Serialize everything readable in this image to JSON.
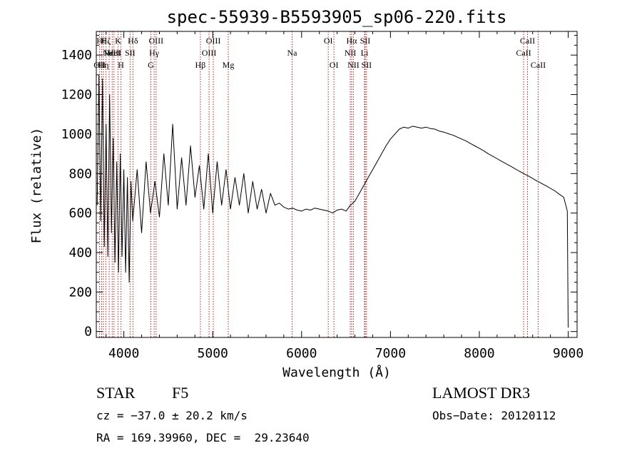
{
  "chart_data": {
    "type": "line",
    "title": "spec-55939-B5593905_sp06-220.fits",
    "xlabel": "Wavelength (Å)",
    "ylabel": "Flux (relative)",
    "xlim": [
      3690,
      9100
    ],
    "ylim": [
      -30,
      1520
    ],
    "xticks": [
      4000,
      5000,
      6000,
      7000,
      8000,
      9000
    ],
    "yticks": [
      0,
      200,
      400,
      600,
      800,
      1000,
      1200,
      1400
    ],
    "series": [
      {
        "name": "flux",
        "x": [
          3700,
          3720,
          3740,
          3760,
          3780,
          3800,
          3820,
          3840,
          3860,
          3880,
          3900,
          3920,
          3940,
          3960,
          3980,
          4000,
          4020,
          4040,
          4060,
          4080,
          4100,
          4150,
          4200,
          4250,
          4300,
          4350,
          4400,
          4450,
          4500,
          4550,
          4600,
          4650,
          4700,
          4750,
          4800,
          4850,
          4900,
          4950,
          5000,
          5050,
          5100,
          5150,
          5200,
          5250,
          5300,
          5350,
          5400,
          5450,
          5500,
          5550,
          5600,
          5650,
          5700,
          5750,
          5800,
          5850,
          5900,
          5950,
          6000,
          6050,
          6100,
          6150,
          6200,
          6250,
          6300,
          6350,
          6400,
          6450,
          6500,
          6550,
          6600,
          6650,
          6700,
          6750,
          6800,
          6850,
          6900,
          6950,
          7000,
          7050,
          7100,
          7150,
          7200,
          7250,
          7300,
          7350,
          7400,
          7450,
          7500,
          7550,
          7600,
          7650,
          7700,
          7750,
          7800,
          7850,
          7900,
          7950,
          8000,
          8050,
          8100,
          8150,
          8200,
          8250,
          8300,
          8350,
          8400,
          8450,
          8500,
          8550,
          8600,
          8650,
          8700,
          8750,
          8800,
          8850,
          8900,
          8950,
          8990,
          9000
        ],
        "values": [
          640,
          1300,
          560,
          1280,
          430,
          1050,
          380,
          1200,
          500,
          980,
          350,
          860,
          300,
          900,
          380,
          820,
          300,
          780,
          250,
          760,
          560,
          820,
          500,
          860,
          600,
          760,
          580,
          900,
          640,
          1050,
          620,
          880,
          640,
          940,
          680,
          840,
          620,
          900,
          600,
          860,
          640,
          820,
          620,
          780,
          640,
          800,
          600,
          760,
          620,
          720,
          600,
          700,
          640,
          650,
          630,
          620,
          625,
          615,
          610,
          620,
          615,
          625,
          620,
          615,
          610,
          600,
          615,
          620,
          610,
          640,
          660,
          700,
          740,
          780,
          820,
          860,
          900,
          940,
          975,
          1000,
          1025,
          1035,
          1030,
          1040,
          1035,
          1030,
          1035,
          1028,
          1025,
          1015,
          1010,
          1002,
          995,
          985,
          975,
          965,
          952,
          940,
          928,
          915,
          900,
          888,
          875,
          862,
          850,
          838,
          825,
          812,
          800,
          788,
          775,
          762,
          750,
          738,
          725,
          712,
          695,
          680,
          610,
          20
        ]
      }
    ],
    "lines": [
      {
        "x": 3727,
        "label": "OII",
        "row": 2
      },
      {
        "x": 3750,
        "label": "Hθ",
        "row": 0
      },
      {
        "x": 3770,
        "label": "Hη",
        "row": 2
      },
      {
        "x": 3798,
        "label": "Hζ",
        "row": 0
      },
      {
        "x": 3835,
        "label": "Hε",
        "row": 1
      },
      {
        "x": 3869,
        "label": "NeIII",
        "row": 1
      },
      {
        "x": 3889,
        "label": "HeI",
        "row": 1
      },
      {
        "x": 3934,
        "label": "K",
        "row": 0
      },
      {
        "x": 3968,
        "label": "H",
        "row": 2
      },
      {
        "x": 4070,
        "label": "SII",
        "row": 1
      },
      {
        "x": 4102,
        "label": "Hδ",
        "row": 0
      },
      {
        "x": 4304,
        "label": "G",
        "row": 2
      },
      {
        "x": 4341,
        "label": "Hγ",
        "row": 1
      },
      {
        "x": 4363,
        "label": "OIII",
        "row": 0
      },
      {
        "x": 4861,
        "label": "Hβ",
        "row": 2
      },
      {
        "x": 4959,
        "label": "OIII",
        "row": 1
      },
      {
        "x": 5007,
        "label": "OIII",
        "row": 0
      },
      {
        "x": 5175,
        "label": "Mg",
        "row": 2
      },
      {
        "x": 5893,
        "label": "Na",
        "row": 1
      },
      {
        "x": 6300,
        "label": "OI",
        "row": 0
      },
      {
        "x": 6364,
        "label": "OI",
        "row": 2
      },
      {
        "x": 6548,
        "label": "NII",
        "row": 1
      },
      {
        "x": 6563,
        "label": "Hα",
        "row": 0
      },
      {
        "x": 6583,
        "label": "NII",
        "row": 2
      },
      {
        "x": 6708,
        "label": "Li",
        "row": 1
      },
      {
        "x": 6716,
        "label": "SII",
        "row": 0
      },
      {
        "x": 6731,
        "label": "SII",
        "row": 2
      },
      {
        "x": 8498,
        "label": "CaII",
        "row": 1
      },
      {
        "x": 8542,
        "label": "CaII",
        "row": 0
      },
      {
        "x": 8662,
        "label": "CaII",
        "row": 2
      }
    ]
  },
  "info": {
    "object_type": "STAR",
    "subclass": "F5",
    "survey": "LAMOST DR3",
    "cz": "cz = −37.0 ± 20.2 km/s",
    "obs_date": "Obs−Date: 20120112",
    "coords": "RA = 169.39960, DEC =  29.23640"
  },
  "colors": {
    "line_marker": "#b22222",
    "spectrum": "#000000"
  }
}
